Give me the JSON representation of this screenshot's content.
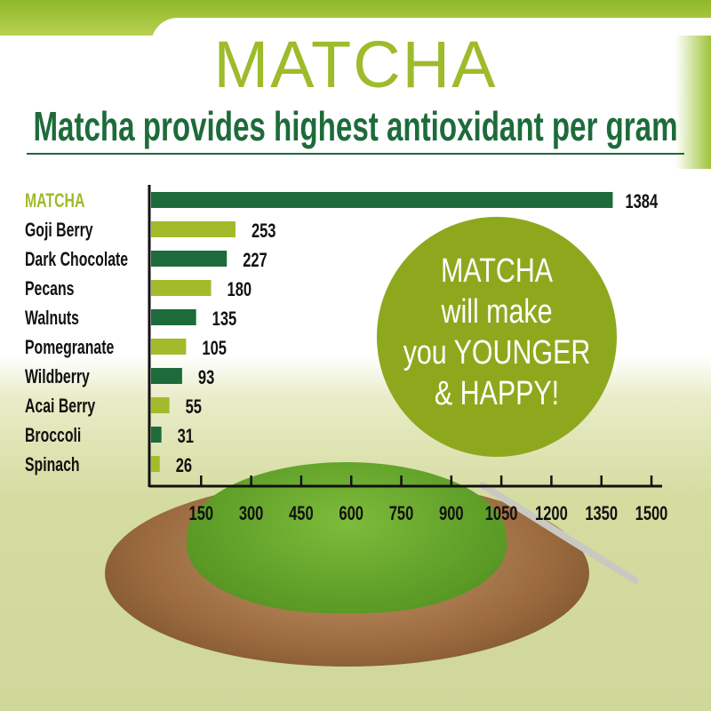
{
  "header": {
    "title": "MATCHA",
    "subtitle": "Matcha provides highest antioxidant per gram"
  },
  "callout": {
    "lines": [
      "MATCHA",
      "will make",
      "you YOUNGER",
      "& HAPPY!"
    ]
  },
  "colors": {
    "dark_green": "#1d6b3a",
    "light_green": "#a3bb2a",
    "circle": "#8ea81e",
    "highlight_label": "#9dbb2b"
  },
  "chart_data": {
    "type": "bar",
    "orientation": "horizontal",
    "categories": [
      "MATCHA",
      "Goji Berry",
      "Dark Chocolate",
      "Pecans",
      "Walnuts",
      "Pomegranate",
      "Wildberry",
      "Acai Berry",
      "Broccoli",
      "Spinach"
    ],
    "values": [
      1384,
      253,
      227,
      180,
      135,
      105,
      93,
      55,
      31,
      26
    ],
    "xticks": [
      150,
      300,
      450,
      600,
      750,
      900,
      1050,
      1200,
      1350,
      1500
    ],
    "xlim": [
      0,
      1500
    ],
    "grid": false,
    "data_labels": true
  }
}
